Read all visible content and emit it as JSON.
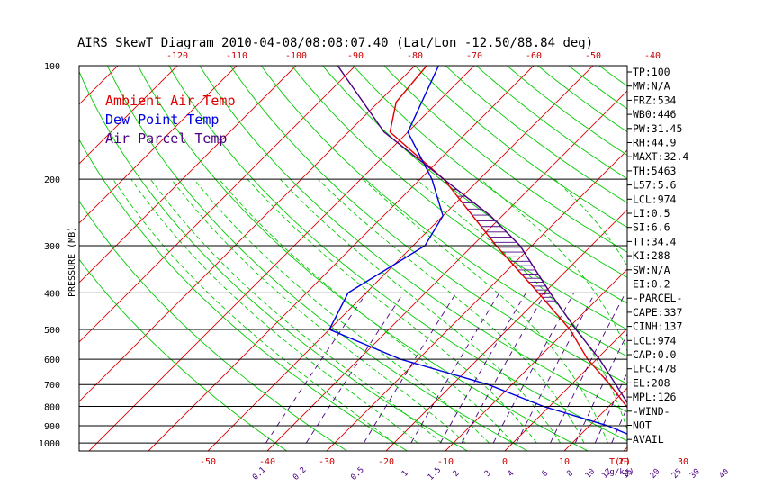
{
  "chart_data": {
    "type": "skew-t",
    "title": "AIRS SkewT Diagram 2010-04-08/08:08:07.40 (Lat/Lon -12.50/88.84 deg)",
    "ylabel": "PRESSURE (MB)",
    "xlabel": "T(C)",
    "mixing_ratio_unit": "(g/kg)",
    "pressure_ticks": [
      100,
      200,
      300,
      400,
      500,
      600,
      700,
      800,
      900,
      1000
    ],
    "pressure_range": [
      100,
      1050
    ],
    "top_temp_ticks": [
      -120,
      -110,
      -100,
      -90,
      -80,
      -70,
      -60,
      -50,
      -40
    ],
    "bottom_temp_ticks": [
      -50,
      -40,
      -30,
      -20,
      -10,
      0,
      10,
      20,
      30
    ],
    "mixing_ratio_ticks": [
      "0.1",
      "0.2",
      "0.5",
      "1",
      "1.5",
      "2",
      "3",
      "4",
      "6",
      "8",
      "10",
      "12",
      "15",
      "20",
      "25",
      "30",
      "40"
    ],
    "legend": [
      {
        "label": "Ambient Air Temp",
        "color": "#e00000"
      },
      {
        "label": "Dew Point Temp",
        "color": "#0000e0"
      },
      {
        "label": "Air Parcel Temp",
        "color": "#4b0082"
      }
    ],
    "series": [
      {
        "name": "Ambient Air Temp",
        "color": "#e00000",
        "points": [
          [
            1000,
            25.3
          ],
          [
            975,
            24
          ],
          [
            900,
            19
          ],
          [
            800,
            13
          ],
          [
            700,
            6.5
          ],
          [
            600,
            -1.5
          ],
          [
            500,
            -9.5
          ],
          [
            400,
            -21
          ],
          [
            300,
            -36
          ],
          [
            250,
            -45
          ],
          [
            200,
            -56
          ],
          [
            150,
            -73
          ],
          [
            125,
            -77
          ],
          [
            100,
            -78
          ]
        ]
      },
      {
        "name": "Dew Point Temp",
        "color": "#0000e0",
        "points": [
          [
            1000,
            21.5
          ],
          [
            975,
            20.5
          ],
          [
            900,
            13
          ],
          [
            800,
            -1
          ],
          [
            700,
            -14
          ],
          [
            600,
            -33
          ],
          [
            500,
            -50
          ],
          [
            400,
            -53
          ],
          [
            300,
            -48
          ],
          [
            250,
            -50
          ],
          [
            200,
            -58
          ],
          [
            150,
            -70
          ],
          [
            100,
            -76
          ]
        ]
      },
      {
        "name": "Air Parcel Temp",
        "color": "#4b0082",
        "points": [
          [
            1000,
            24.8
          ],
          [
            974,
            21.5
          ],
          [
            900,
            18
          ],
          [
            800,
            13.5
          ],
          [
            700,
            7.5
          ],
          [
            600,
            0.5
          ],
          [
            500,
            -8.5
          ],
          [
            400,
            -19
          ],
          [
            300,
            -32
          ],
          [
            250,
            -42
          ],
          [
            200,
            -56
          ],
          [
            150,
            -74
          ],
          [
            100,
            -93
          ]
        ]
      }
    ],
    "indices": [
      "TP:100",
      "MW:N/A",
      "FRZ:534",
      "WB0:446",
      "PW:31.45",
      "RH:44.9",
      "MAXT:32.4",
      "TH:5463",
      "L57:5.6",
      "LCL:974",
      "LI:0.5",
      "SI:6.6",
      "TT:34.4",
      "KI:288",
      "SW:N/A",
      "EI:0.2",
      "-PARCEL-",
      "CAPE:337",
      "CINH:137",
      "LCL:974",
      "CAP:0.0",
      "LFC:478",
      "EL:208",
      "MPL:126",
      "-WIND-",
      "NOT",
      "AVAIL"
    ],
    "colors": {
      "isotherm": "#e00000",
      "dry_adiabat": "#00cc00",
      "moist_adiabat": "#00cc00",
      "mixing_ratio": "#4b0082",
      "isobar": "#000000"
    }
  }
}
